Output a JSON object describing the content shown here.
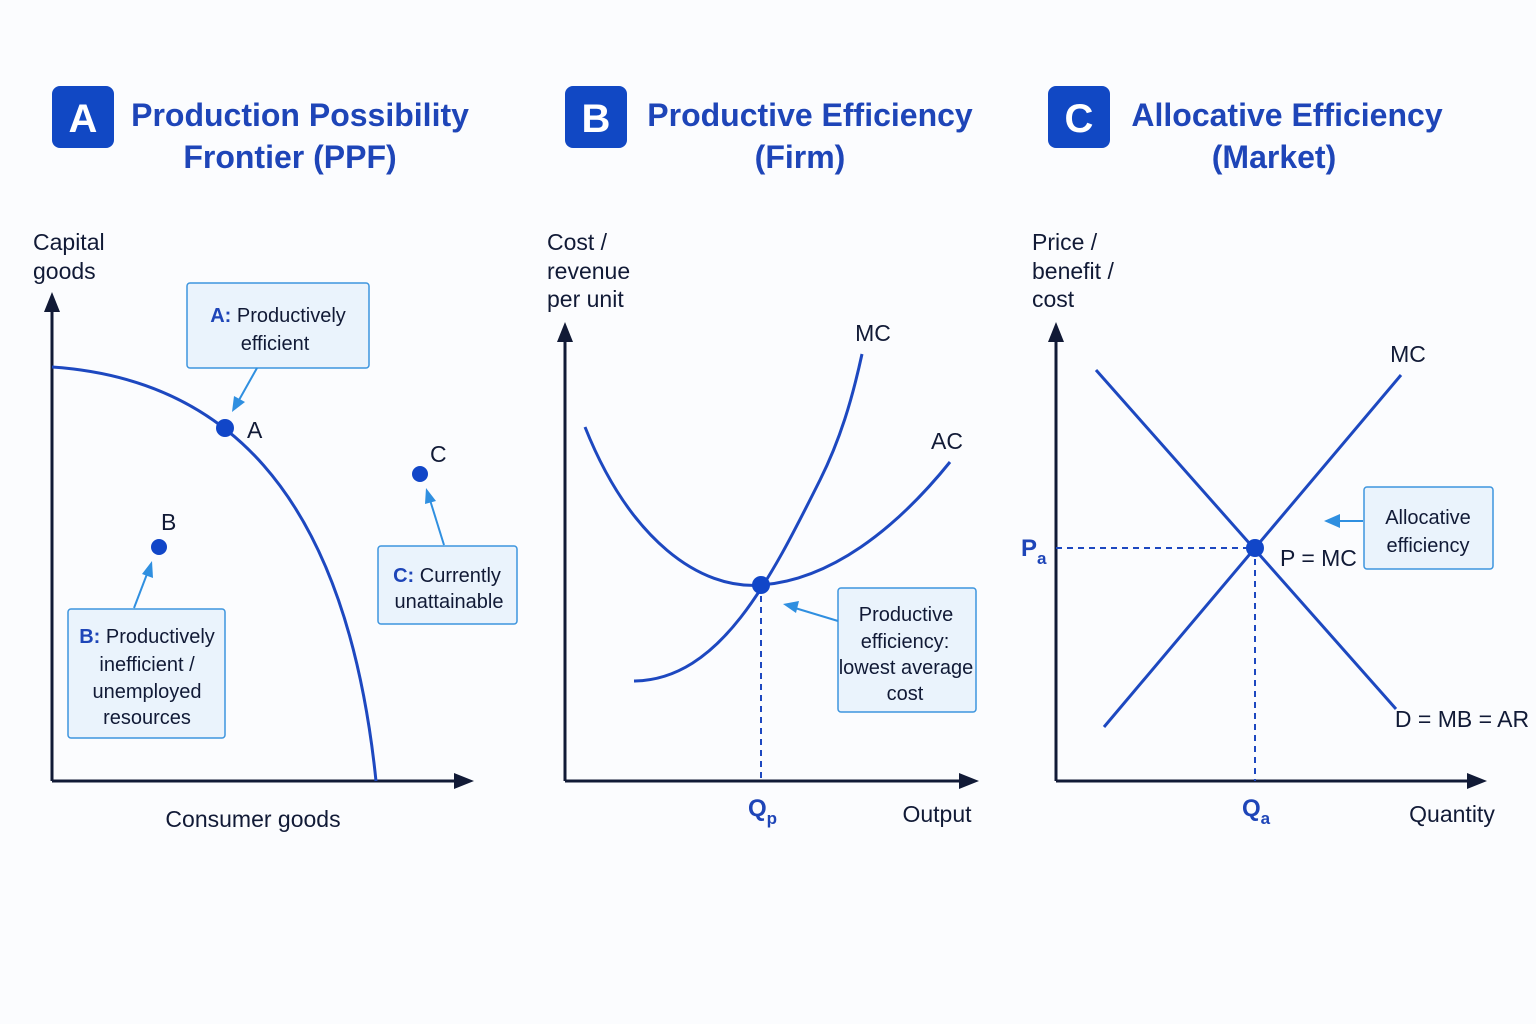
{
  "panels": [
    {
      "badge": "A",
      "title_lines": [
        "Production Possibility",
        "Frontier (PPF)"
      ],
      "y_axis_lines": [
        "Capital",
        "goods"
      ],
      "x_axis": "Consumer goods",
      "points": {
        "a": "A",
        "b": "B",
        "c": "C"
      },
      "notes": {
        "a": {
          "key": "A:",
          "line1": "Productively",
          "line2": "efficient"
        },
        "b": {
          "key": "B:",
          "line1": "Productively",
          "line2": "inefficient /",
          "line3": "unemployed",
          "line4": "resources"
        },
        "c": {
          "key": "C:",
          "line1": "Currently",
          "line2": "unattainable"
        }
      }
    },
    {
      "badge": "B",
      "title_lines": [
        "Productive Efficiency",
        "(Firm)"
      ],
      "y_axis_lines": [
        "Cost /",
        "revenue",
        "per unit"
      ],
      "x_axis": "Output",
      "curves": {
        "mc": "MC",
        "ac": "AC"
      },
      "q_marker": {
        "main": "Q",
        "sub": "p"
      },
      "note": {
        "line1": "Productive",
        "line2": "efficiency:",
        "line3": "lowest average",
        "line4": "cost"
      }
    },
    {
      "badge": "C",
      "title_lines": [
        "Allocative Efficiency",
        "(Market)"
      ],
      "y_axis_lines": [
        "Price /",
        "benefit /",
        "cost"
      ],
      "x_axis": "Quantity",
      "curves": {
        "mc": "MC",
        "d": "D = MB = AR"
      },
      "p_marker": {
        "main": "P",
        "sub": "a"
      },
      "q_marker": {
        "main": "Q",
        "sub": "a"
      },
      "equilibrium_label": "P = MC",
      "note": {
        "line1": "Allocative",
        "line2": "efficiency"
      }
    }
  ],
  "colors": {
    "accent": "#1148c4",
    "curve": "#1d48c0",
    "axis": "#111a36",
    "note_fill": "#eaf3fc",
    "note_border": "#3d95de",
    "pointer": "#2f8fe0"
  }
}
